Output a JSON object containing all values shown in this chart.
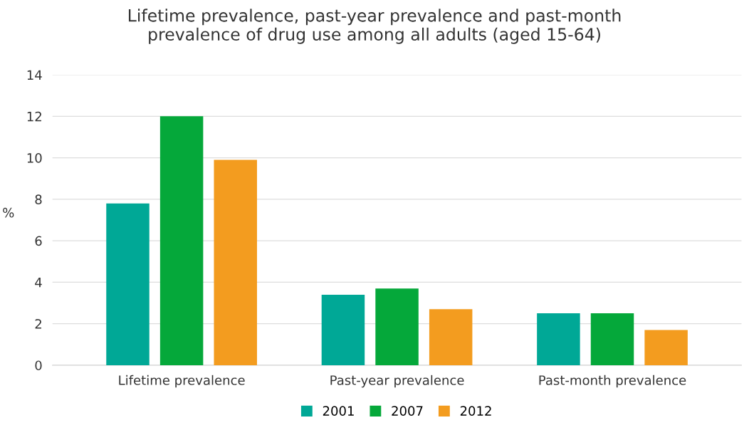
{
  "chart_data": {
    "type": "bar",
    "title": "Lifetime prevalence, past-year prevalence and past-month\nprevalence of drug use among all adults (aged 15-64)",
    "ylabel": "%",
    "categories": [
      "Lifetime prevalence",
      "Past-year prevalence",
      "Past-month prevalence"
    ],
    "series": [
      {
        "name": "2001",
        "color": "#00a896",
        "values": [
          7.8,
          3.4,
          2.5
        ]
      },
      {
        "name": "2007",
        "color": "#05a83a",
        "values": [
          12.0,
          3.7,
          2.5
        ]
      },
      {
        "name": "2012",
        "color": "#f39c1f",
        "values": [
          9.9,
          2.7,
          1.7
        ]
      }
    ],
    "ylim": [
      0,
      14
    ],
    "yticks": [
      0,
      2,
      4,
      6,
      8,
      10,
      12,
      14
    ],
    "grid": "y",
    "legend": "bottom"
  }
}
